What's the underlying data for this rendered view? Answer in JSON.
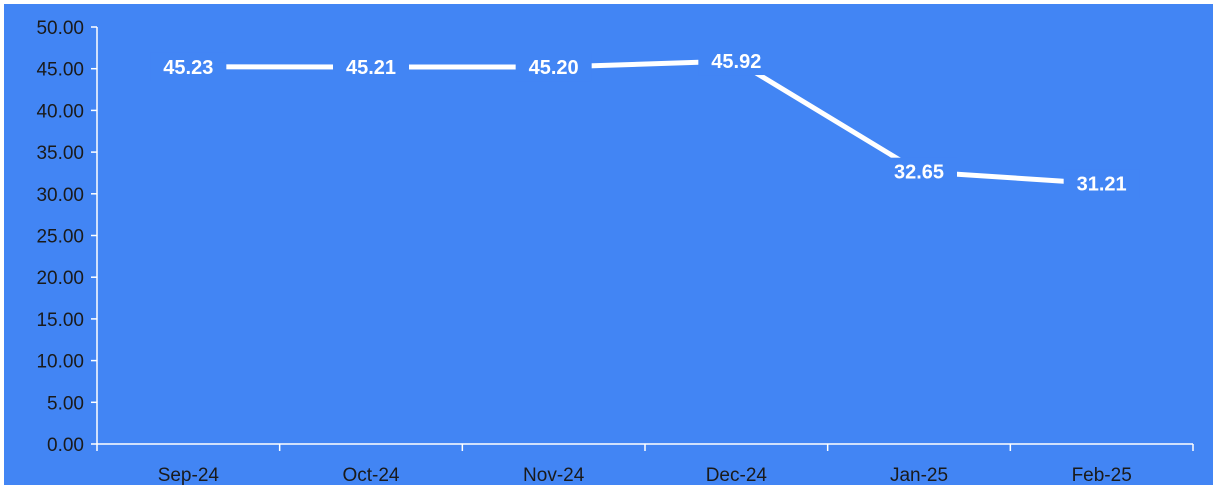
{
  "chart_data": {
    "type": "line",
    "categories": [
      "Sep-24",
      "Oct-24",
      "Nov-24",
      "Dec-24",
      "Jan-25",
      "Feb-25"
    ],
    "series": [
      {
        "values": [
          45.23,
          45.21,
          45.2,
          45.92,
          32.65,
          31.21
        ]
      }
    ],
    "data_labels": [
      "45.23",
      "45.21",
      "45.20",
      "45.92",
      "32.65",
      "31.21"
    ],
    "y_ticks": [
      "0.00",
      "5.00",
      "10.00",
      "15.00",
      "20.00",
      "25.00",
      "30.00",
      "35.00",
      "40.00",
      "45.00",
      "50.00"
    ],
    "ylim": [
      0,
      50
    ],
    "title": "",
    "xlabel": "",
    "ylabel": "",
    "grid": false,
    "drop_lines": true,
    "colors": {
      "background": "#4285f4",
      "line": "#ffffff",
      "axis": "#ffffff",
      "text": "#1a1a1a",
      "label": "#ffffff"
    }
  }
}
